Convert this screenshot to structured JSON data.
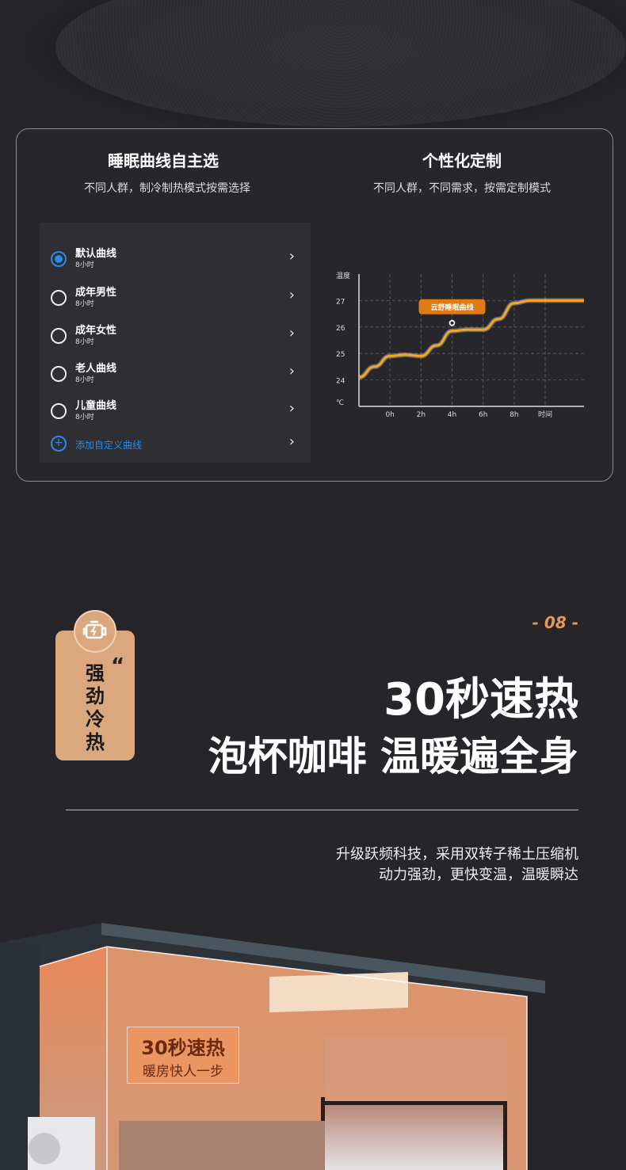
{
  "panel_left": {
    "title": "睡眠曲线自主选",
    "subtitle": "不同人群，制冷制热模式按需选择",
    "items": [
      {
        "label": "默认曲线",
        "duration": "8小时",
        "selected": true
      },
      {
        "label": "成年男性",
        "duration": "8小时",
        "selected": false
      },
      {
        "label": "成年女性",
        "duration": "8小时",
        "selected": false
      },
      {
        "label": "老人曲线",
        "duration": "8小时",
        "selected": false
      },
      {
        "label": "儿童曲线",
        "duration": "8小时",
        "selected": false
      }
    ],
    "add_label": "添加自定义曲线",
    "accent": "#2b8ae6"
  },
  "panel_right": {
    "title": "个性化定制",
    "subtitle": "不同人群，不同需求，按需定制模式"
  },
  "chart_data": {
    "type": "line",
    "ylabel": "温度",
    "yunit": "℃",
    "xlabel": "时间",
    "x_ticks": [
      "0h",
      "2h",
      "4h",
      "6h",
      "8h"
    ],
    "y_ticks": [
      24,
      25,
      26,
      27
    ],
    "ylim": [
      23,
      28
    ],
    "xlim": [
      -2,
      12.5
    ],
    "series": [
      {
        "name": "云舒睡眠曲线",
        "color": "#f5a623",
        "x": [
          -2,
          -1,
          0,
          1,
          2,
          3,
          4,
          5,
          6,
          7,
          8,
          9,
          10,
          12.5
        ],
        "y": [
          24.1,
          24.5,
          24.9,
          24.95,
          24.9,
          25.3,
          25.85,
          25.9,
          25.9,
          26.3,
          26.9,
          27,
          27,
          27
        ]
      }
    ],
    "annotation": {
      "text": "云舒睡眠曲线",
      "x": 4,
      "y": 26.15
    },
    "grid": true
  },
  "feature": {
    "icon": "engine-bolt-icon",
    "badge_text": "强劲冷热",
    "quote_mark": "“",
    "number": "- 08 -",
    "headline1": "30秒速热",
    "headline2": "泡杯咖啡 温暖遍全身",
    "desc1": "升级跃频科技，采用双转子稀土压缩机",
    "desc2": "动力强劲，更快变温，温暖瞬达",
    "accent": "#e09a5c"
  },
  "image_tag": {
    "line1": "30秒速热",
    "line2": "暖房快人一步"
  }
}
